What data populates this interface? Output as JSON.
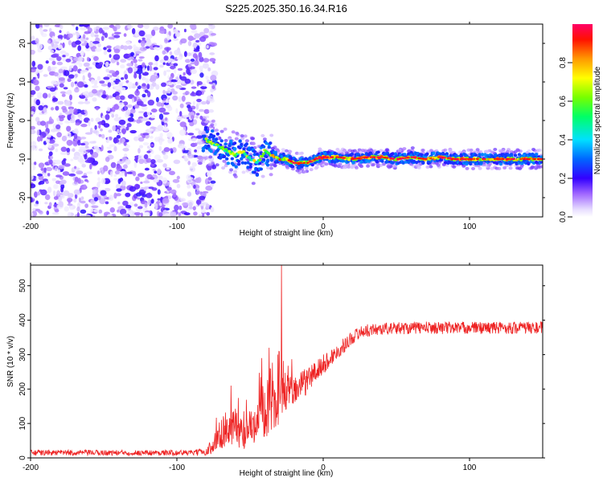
{
  "chart_data": [
    {
      "type": "heatmap",
      "title": "S225.2025.350.16.34.R16",
      "xlabel": "Height of straight line (km)",
      "ylabel": "Frequency (Hz)",
      "xlim": [
        -200,
        150
      ],
      "ylim": [
        -25,
        25
      ],
      "xticks": [
        -200,
        -100,
        0,
        100
      ],
      "yticks": [
        -20,
        -10,
        0,
        10,
        20
      ],
      "colorbar": {
        "label": "Normalized spectral amplitude",
        "range": [
          0,
          1
        ],
        "ticks": [
          0.0,
          0.2,
          0.4,
          0.6,
          0.8
        ]
      },
      "regions": [
        {
          "name": "noise",
          "x_range": [
            -200,
            -80
          ],
          "freq_range": [
            -25,
            25
          ],
          "amplitude_range": [
            0.0,
            0.2
          ]
        },
        {
          "name": "transition",
          "x_range": [
            -80,
            -35
          ],
          "freq_range": [
            -17,
            -3
          ],
          "amplitude_range": [
            0.2,
            0.6
          ]
        },
        {
          "name": "signal",
          "x_range": [
            -35,
            150
          ],
          "freq_center": -10,
          "amplitude_range": [
            0.6,
            1.0
          ]
        }
      ],
      "peak_track": {
        "x": [
          -80,
          -75,
          -70,
          -65,
          -60,
          -55,
          -50,
          -45,
          -40,
          -35,
          -30,
          -25,
          -20,
          -15,
          -10,
          -5,
          0,
          10,
          20,
          30,
          40,
          50,
          60,
          70,
          80,
          90,
          100,
          110,
          120,
          130,
          140,
          150
        ],
        "freq": [
          -5,
          -6,
          -7,
          -8,
          -9,
          -8,
          -10,
          -11,
          -8,
          -9,
          -10,
          -10,
          -11,
          -11,
          -11,
          -10,
          -9.5,
          -9.5,
          -10,
          -9.5,
          -9.5,
          -10,
          -9.5,
          -10,
          -9.5,
          -10,
          -10,
          -10,
          -10,
          -10,
          -10,
          -10
        ]
      }
    },
    {
      "type": "line",
      "xlabel": "Height of straight line (km)",
      "ylabel": "SNR (10 * v/v)",
      "xlim": [
        -200,
        150
      ],
      "ylim": [
        0,
        560
      ],
      "xticks": [
        -200,
        -100,
        0,
        100
      ],
      "yticks": [
        0,
        100,
        200,
        300,
        400,
        500
      ],
      "series": [
        {
          "name": "SNR",
          "color": "#ee2222",
          "x": [
            -200,
            -180,
            -160,
            -140,
            -120,
            -100,
            -90,
            -80,
            -75,
            -70,
            -65,
            -60,
            -55,
            -50,
            -45,
            -40,
            -35,
            -30,
            -25,
            -20,
            -15,
            -10,
            -5,
            0,
            5,
            10,
            15,
            20,
            25,
            30,
            40,
            60,
            80,
            100,
            120,
            140,
            150
          ],
          "y": [
            15,
            15,
            15,
            15,
            15,
            15,
            15,
            18,
            35,
            70,
            90,
            80,
            70,
            90,
            110,
            130,
            150,
            160,
            190,
            200,
            210,
            230,
            250,
            270,
            290,
            310,
            330,
            350,
            365,
            370,
            375,
            378,
            378,
            378,
            378,
            378,
            378
          ],
          "noise_amplitude": [
            8,
            8,
            8,
            8,
            8,
            8,
            8,
            10,
            25,
            45,
            55,
            55,
            50,
            55,
            60,
            70,
            80,
            70,
            50,
            45,
            40,
            40,
            35,
            30,
            25,
            22,
            22,
            20,
            18,
            18,
            18,
            18,
            18,
            18,
            18,
            18,
            18
          ],
          "spikes": [
            {
              "x": -28.5,
              "y": 560
            },
            {
              "x": -37,
              "y": 320
            },
            {
              "x": -63,
              "y": 210
            },
            {
              "x": -42,
              "y": 290
            },
            {
              "x": -31,
              "y": 300
            }
          ]
        }
      ]
    }
  ]
}
